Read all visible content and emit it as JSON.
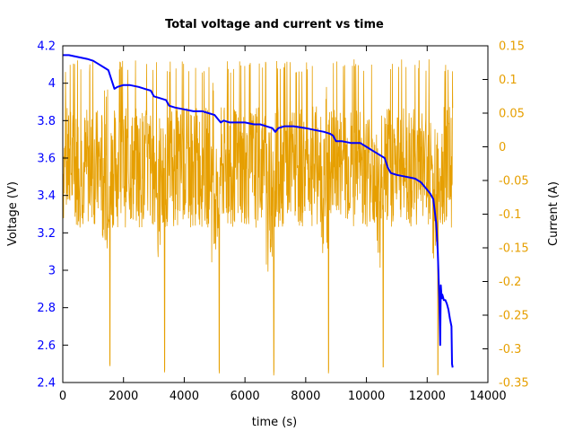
{
  "chart_data": {
    "type": "line",
    "title": "Total voltage and current vs time",
    "xlabel": "time (s)",
    "ylabel_left": "Voltage (V)",
    "ylabel_right": "Current (A)",
    "xlim": [
      0,
      14000
    ],
    "ylim_left": [
      2.4,
      4.2
    ],
    "ylim_right": [
      -0.35,
      0.15
    ],
    "x_ticks": [
      "0",
      "2000",
      "4000",
      "6000",
      "8000",
      "10000",
      "12000",
      "14000"
    ],
    "y_left_ticks": [
      "2.4",
      "2.6",
      "2.8",
      "3",
      "3.2",
      "3.4",
      "3.6",
      "3.8",
      "4",
      "4.2"
    ],
    "y_right_ticks": [
      "-0.35",
      "-0.3",
      "-0.25",
      "-0.2",
      "-0.15",
      "-0.1",
      "-0.05",
      "0",
      "0.05",
      "0.1",
      "0.15"
    ],
    "grid": false,
    "colors": {
      "voltage": "#0000ff",
      "current": "#e69f00",
      "left_axis": "#0000ff",
      "right_axis": "#e69f00"
    },
    "series": [
      {
        "axis": "left",
        "color": "#0000ff",
        "x": [
          0,
          200,
          500,
          800,
          1000,
          1200,
          1400,
          1500,
          1600,
          1700,
          1800,
          2000,
          2200,
          2500,
          2700,
          2900,
          3000,
          3200,
          3400,
          3500,
          3700,
          4000,
          4300,
          4600,
          4800,
          5000,
          5100,
          5200,
          5300,
          5500,
          5800,
          6000,
          6300,
          6500,
          6700,
          6900,
          7000,
          7100,
          7300,
          7600,
          8000,
          8300,
          8600,
          8800,
          8900,
          9000,
          9200,
          9500,
          9800,
          10000,
          10200,
          10400,
          10600,
          10700,
          10800,
          11000,
          11300,
          11600,
          11800,
          12000,
          12100,
          12200,
          12300,
          12350,
          12400,
          12430,
          12450,
          12480,
          12500,
          12550,
          12600,
          12650,
          12700,
          12750,
          12800,
          12820,
          12840
        ],
        "y": [
          4.15,
          4.15,
          4.14,
          4.13,
          4.12,
          4.1,
          4.08,
          4.07,
          4.02,
          3.97,
          3.98,
          3.99,
          3.99,
          3.98,
          3.97,
          3.96,
          3.93,
          3.92,
          3.91,
          3.88,
          3.87,
          3.86,
          3.85,
          3.85,
          3.84,
          3.83,
          3.81,
          3.79,
          3.8,
          3.79,
          3.79,
          3.79,
          3.78,
          3.78,
          3.77,
          3.76,
          3.74,
          3.76,
          3.77,
          3.77,
          3.76,
          3.75,
          3.74,
          3.73,
          3.72,
          3.69,
          3.69,
          3.68,
          3.68,
          3.66,
          3.64,
          3.62,
          3.6,
          3.55,
          3.52,
          3.51,
          3.5,
          3.49,
          3.47,
          3.43,
          3.41,
          3.38,
          3.25,
          3.1,
          2.85,
          2.6,
          2.92,
          2.85,
          2.87,
          2.84,
          2.84,
          2.82,
          2.79,
          2.74,
          2.7,
          2.5,
          2.48
        ]
      },
      {
        "axis": "right",
        "color": "#e69f00",
        "x_range": [
          0,
          12850
        ],
        "baseline": -0.03,
        "amplitude": 0.09,
        "discharge_pulses_at_x": [
          1550,
          3350,
          5150,
          6950,
          8750,
          10550,
          12350
        ],
        "discharge_pulse_min_y": [
          -0.33,
          -0.34,
          -0.34,
          -0.34,
          -0.34,
          -0.33,
          -0.34
        ],
        "max_y": 0.13
      }
    ]
  }
}
